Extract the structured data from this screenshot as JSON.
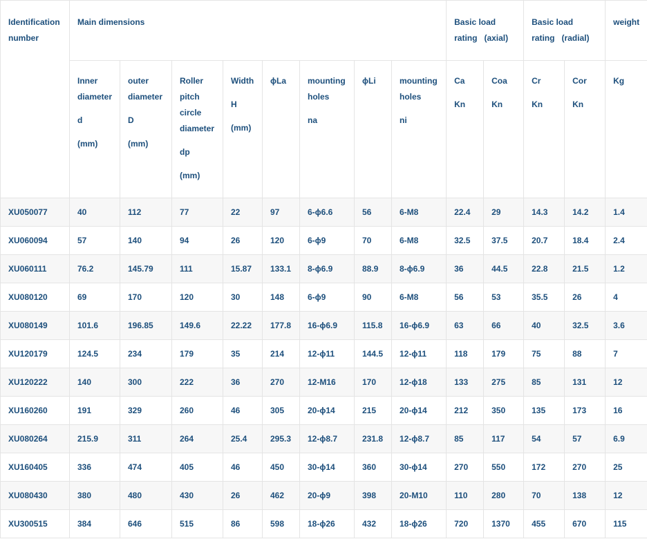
{
  "header": {
    "groups": [
      {
        "lines": [
          "Identification",
          "number"
        ]
      },
      {
        "lines": [
          "Main dimensions"
        ]
      },
      {
        "lines": [
          "Basic load",
          "rating   (axial)"
        ]
      },
      {
        "lines": [
          "Basic load",
          "rating   (radial)"
        ]
      },
      {
        "lines": [
          "weight"
        ]
      }
    ],
    "columns": [
      {
        "paras": [
          "Inner diameter",
          "d",
          "(mm)"
        ]
      },
      {
        "paras": [
          "outer diameter",
          "D",
          "(mm)"
        ]
      },
      {
        "paras": [
          "Roller pitch circle diameter",
          "dp",
          "(mm)"
        ]
      },
      {
        "paras": [
          "Width",
          "H",
          "(mm)"
        ]
      },
      {
        "paras": [
          "ϕLa"
        ]
      },
      {
        "paras": [
          "mounting holes",
          "na"
        ]
      },
      {
        "paras": [
          "ϕLi"
        ]
      },
      {
        "paras": [
          "mounting holes",
          "ni"
        ]
      },
      {
        "paras": [
          "Ca",
          "Kn"
        ]
      },
      {
        "paras": [
          "Coa",
          "Kn"
        ]
      },
      {
        "paras": [
          "Cr",
          "Kn"
        ]
      },
      {
        "paras": [
          "Cor",
          "Kn"
        ]
      },
      {
        "paras": [
          "Kg"
        ]
      }
    ]
  },
  "table": {
    "rows": [
      [
        "XU050077",
        "40",
        "112",
        "77",
        "22",
        "97",
        "6-ϕ6.6",
        "56",
        "6-M8",
        "22.4",
        "29",
        "14.3",
        "14.2",
        "1.4"
      ],
      [
        "XU060094",
        "57",
        "140",
        "94",
        "26",
        "120",
        "6-ϕ9",
        "70",
        "6-M8",
        "32.5",
        "37.5",
        "20.7",
        "18.4",
        "2.4"
      ],
      [
        "XU060111",
        "76.2",
        "145.79",
        "111",
        "15.87",
        "133.1",
        "8-ϕ6.9",
        "88.9",
        "8-ϕ6.9",
        "36",
        "44.5",
        "22.8",
        "21.5",
        "1.2"
      ],
      [
        "XU080120",
        "69",
        "170",
        "120",
        "30",
        "148",
        "6-ϕ9",
        "90",
        "6-M8",
        "56",
        "53",
        "35.5",
        "26",
        "4"
      ],
      [
        "XU080149",
        "101.6",
        "196.85",
        "149.6",
        "22.22",
        "177.8",
        "16-ϕ6.9",
        "115.8",
        "16-ϕ6.9",
        "63",
        "66",
        "40",
        "32.5",
        "3.6"
      ],
      [
        "XU120179",
        "124.5",
        "234",
        "179",
        "35",
        "214",
        "12-ϕ11",
        "144.5",
        "12-ϕ11",
        "118",
        "179",
        "75",
        "88",
        "7"
      ],
      [
        "XU120222",
        "140",
        "300",
        "222",
        "36",
        "270",
        "12-M16",
        "170",
        "12-ϕ18",
        "133",
        "275",
        "85",
        "131",
        "12"
      ],
      [
        "XU160260",
        "191",
        "329",
        "260",
        "46",
        "305",
        "20-ϕ14",
        "215",
        "20-ϕ14",
        "212",
        "350",
        "135",
        "173",
        "16"
      ],
      [
        "XU080264",
        "215.9",
        "311",
        "264",
        "25.4",
        "295.3",
        "12-ϕ8.7",
        "231.8",
        "12-ϕ8.7",
        "85",
        "117",
        "54",
        "57",
        "6.9"
      ],
      [
        "XU160405",
        "336",
        "474",
        "405",
        "46",
        "450",
        "30-ϕ14",
        "360",
        "30-ϕ14",
        "270",
        "550",
        "172",
        "270",
        "25"
      ],
      [
        "XU080430",
        "380",
        "480",
        "430",
        "26",
        "462",
        "20-ϕ9",
        "398",
        "20-M10",
        "110",
        "280",
        "70",
        "138",
        "12"
      ],
      [
        "XU300515",
        "384",
        "646",
        "515",
        "86",
        "598",
        "18-ϕ26",
        "432",
        "18-ϕ26",
        "720",
        "1370",
        "455",
        "670",
        "115"
      ]
    ]
  }
}
